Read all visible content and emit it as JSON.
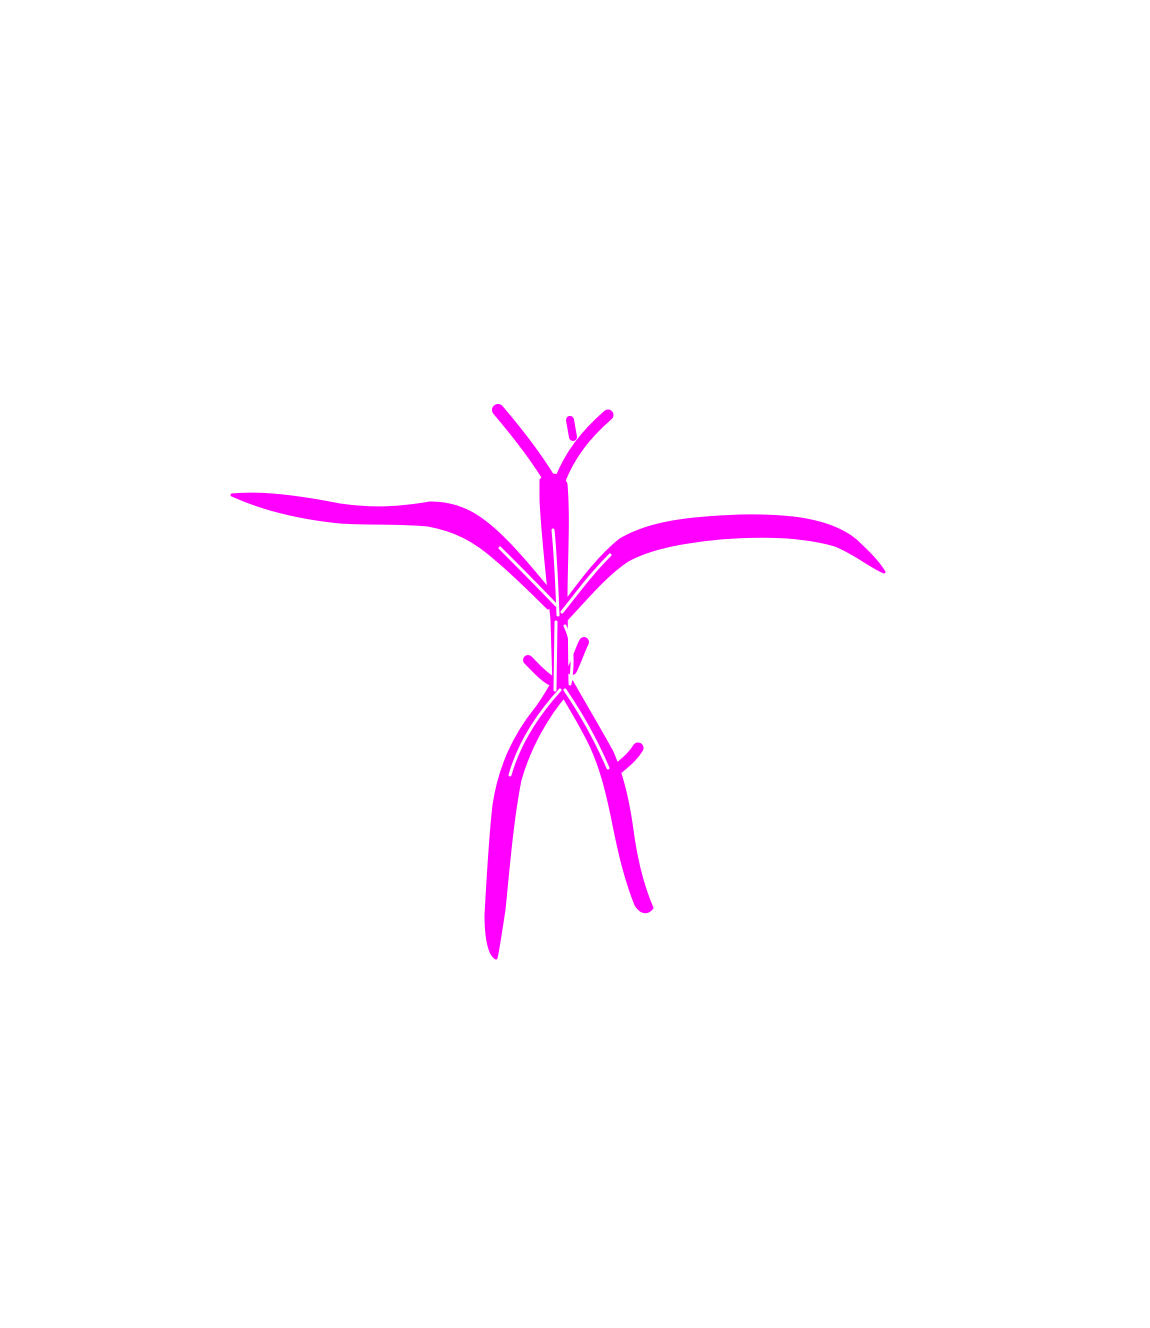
{
  "drawing": {
    "subject": "stick-figure",
    "stroke_color": "#ff00ff",
    "background_color": "#ffffff"
  }
}
